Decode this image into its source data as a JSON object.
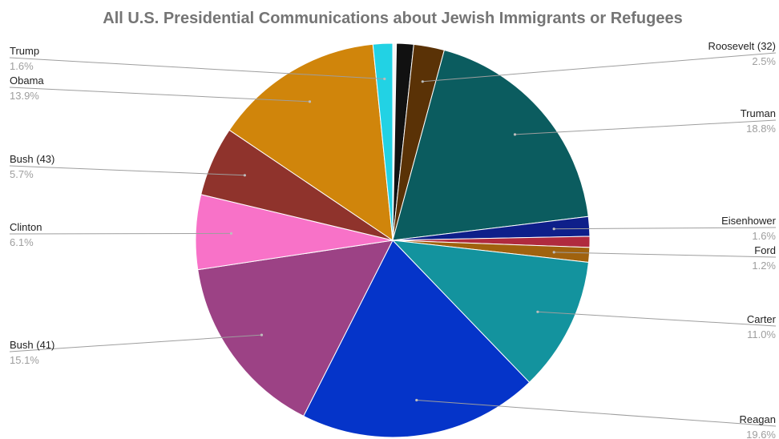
{
  "chart_data": {
    "type": "pie",
    "title": "All U.S. Presidential Communications about Jewish Immigrants or Refugees",
    "slices": [
      {
        "label": "",
        "pct": "",
        "value": 0.3,
        "color": "#f5f5f5"
      },
      {
        "label": "",
        "pct": "",
        "value": 1.4,
        "color": "#111111"
      },
      {
        "label": "Roosevelt (32)",
        "pct": "2.5%",
        "value": 2.5,
        "color": "#5a3206"
      },
      {
        "label": "Truman",
        "pct": "18.8%",
        "value": 18.8,
        "color": "#0b5c5f"
      },
      {
        "label": "Eisenhower",
        "pct": "1.6%",
        "value": 1.6,
        "color": "#0e1f8a"
      },
      {
        "label": "",
        "pct": "",
        "value": 0.9,
        "color": "#b02a3e"
      },
      {
        "label": "Ford",
        "pct": "1.2%",
        "value": 1.2,
        "color": "#a0620e"
      },
      {
        "label": "Carter",
        "pct": "11.0%",
        "value": 11.0,
        "color": "#13939e"
      },
      {
        "label": "Reagan",
        "pct": "19.6%",
        "value": 19.6,
        "color": "#0534c9"
      },
      {
        "label": "Bush (41)",
        "pct": "15.1%",
        "value": 15.1,
        "color": "#9c4285"
      },
      {
        "label": "Clinton",
        "pct": "6.1%",
        "value": 6.1,
        "color": "#f872c8"
      },
      {
        "label": "Bush (43)",
        "pct": "5.7%",
        "value": 5.7,
        "color": "#8f332c"
      },
      {
        "label": "Obama",
        "pct": "13.9%",
        "value": 13.9,
        "color": "#d0850b"
      },
      {
        "label": "Trump",
        "pct": "1.6%",
        "value": 1.6,
        "color": "#22d2e4"
      }
    ]
  }
}
